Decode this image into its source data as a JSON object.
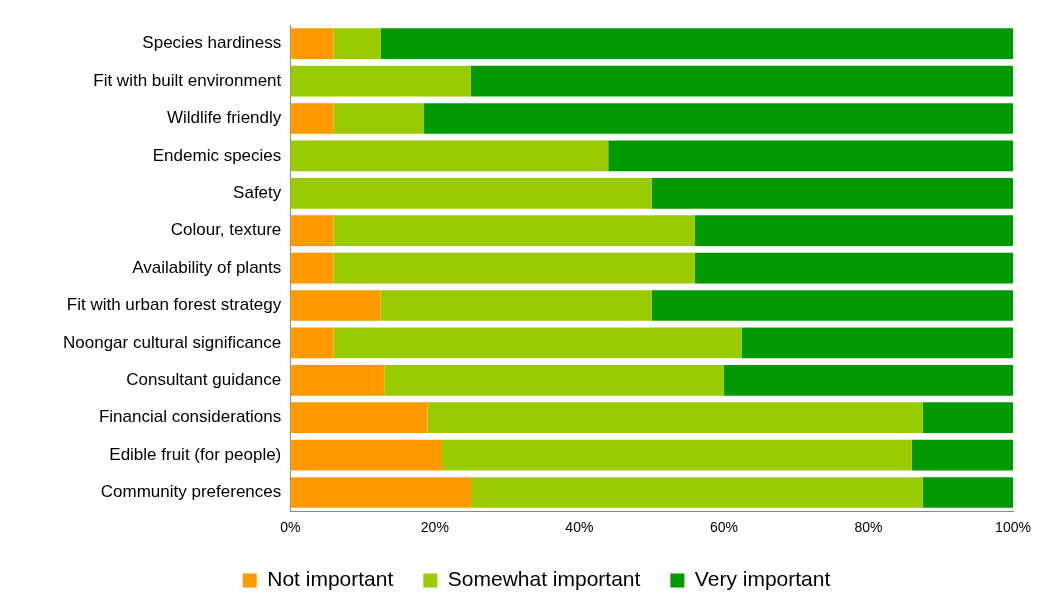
{
  "chart_data": {
    "type": "bar",
    "orientation": "horizontal",
    "stacked": true,
    "categories": [
      "Species hardiness",
      "Fit with built environment",
      "Wildlife friendly",
      "Endemic species",
      "Safety",
      "Colour, texture",
      "Availability of plants",
      "Fit with urban forest strategy",
      "Noongar cultural significance",
      "Consultant guidance",
      "Financial considerations",
      "Edible fruit (for people)",
      "Community preferences"
    ],
    "series": [
      {
        "name": "Not important",
        "color": "#ff9900",
        "values": [
          6,
          0,
          6,
          0,
          0,
          6,
          6,
          12.5,
          6,
          13,
          19,
          21,
          25
        ]
      },
      {
        "name": "Somewhat important",
        "color": "#99cc00",
        "values": [
          6.5,
          25,
          12.5,
          44,
          50,
          50,
          50,
          37.5,
          56.5,
          47,
          68.5,
          65,
          62.5
        ]
      },
      {
        "name": "Very important",
        "color": "#009900",
        "values": [
          87.5,
          75,
          81.5,
          56,
          50,
          44,
          44,
          50,
          37.5,
          40,
          12.5,
          14,
          12.5
        ]
      }
    ],
    "xlim": [
      0,
      100
    ],
    "xticks": [
      {
        "value": 0,
        "label": "0%"
      },
      {
        "value": 20,
        "label": "20%"
      },
      {
        "value": 40,
        "label": "40%"
      },
      {
        "value": 60,
        "label": "60%"
      },
      {
        "value": 80,
        "label": "80%"
      },
      {
        "value": 100,
        "label": "100%"
      }
    ],
    "grid": false,
    "legend": "bottom"
  }
}
